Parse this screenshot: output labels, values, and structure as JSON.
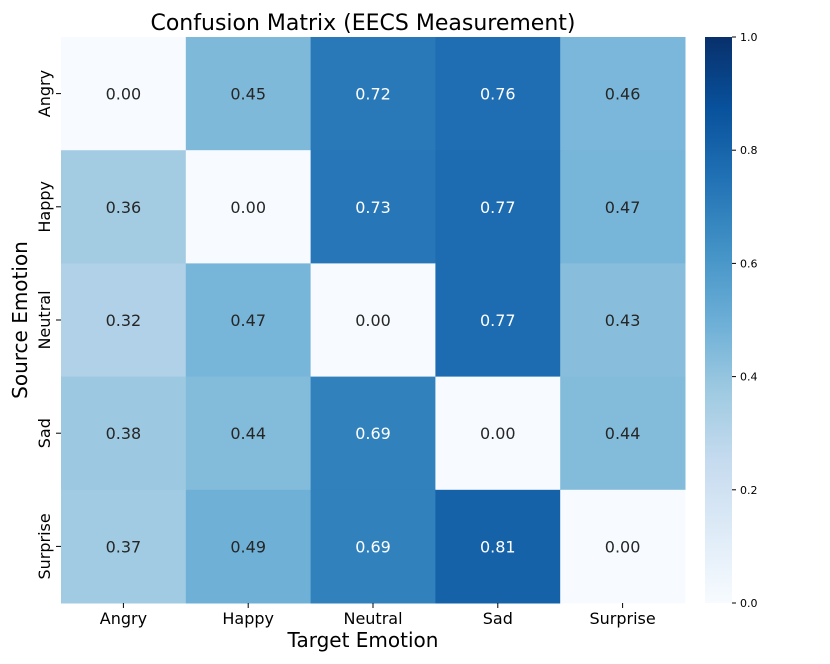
{
  "chart_data": {
    "type": "heatmap",
    "title": "Confusion Matrix (EECS Measurement)",
    "xlabel": "Target Emotion",
    "ylabel": "Source Emotion",
    "x_categories": [
      "Angry",
      "Happy",
      "Neutral",
      "Sad",
      "Surprise"
    ],
    "y_categories": [
      "Angry",
      "Happy",
      "Neutral",
      "Sad",
      "Surprise"
    ],
    "values": [
      [
        0.0,
        0.45,
        0.72,
        0.76,
        0.46
      ],
      [
        0.36,
        0.0,
        0.73,
        0.77,
        0.47
      ],
      [
        0.32,
        0.47,
        0.0,
        0.77,
        0.43
      ],
      [
        0.38,
        0.44,
        0.69,
        0.0,
        0.44
      ],
      [
        0.37,
        0.49,
        0.69,
        0.81,
        0.0
      ]
    ],
    "value_format": "0.00",
    "colormap": "Blues",
    "vmin": 0.0,
    "vmax": 1.0,
    "colorbar_ticks": [
      "0.0",
      "0.2",
      "0.4",
      "0.6",
      "0.8",
      "1.0"
    ],
    "colorbar_tick_values": [
      0.0,
      0.2,
      0.4,
      0.6,
      0.8,
      1.0
    ]
  }
}
